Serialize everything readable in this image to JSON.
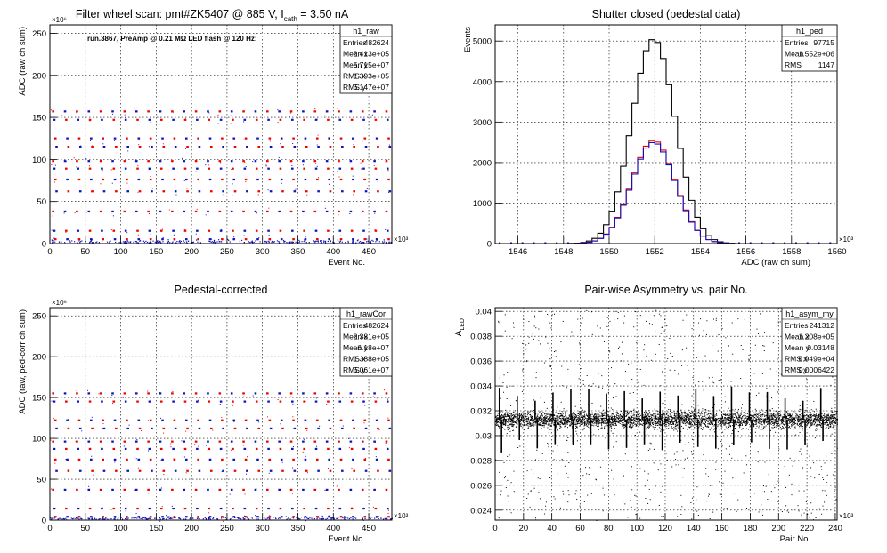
{
  "chart_data": [
    {
      "type": "scatter",
      "title_main": "Filter wheel scan: pmt#ZK5407 @   885 V, I",
      "title_sub": "cath",
      "title_tail": " = 3.50 nA",
      "annotation": "run.3867, PreAmp @ 0.21 MΩ LED flash @  120 Hz:",
      "xlabel": "Event No.",
      "ylabel": "ADC (raw ch sum)",
      "x_exponent": "×10³",
      "y_exponent": "×10⁶",
      "xlim": [
        0,
        482.6
      ],
      "ylim": [
        0,
        260
      ],
      "x_ticks": [
        "0",
        "50",
        "100",
        "150",
        "200",
        "250",
        "300",
        "350",
        "400",
        "450"
      ],
      "y_ticks": [
        "0",
        "50",
        "100",
        "150",
        "200",
        "250"
      ],
      "x_tick_values": [
        0,
        50,
        100,
        150,
        200,
        250,
        300,
        350,
        400,
        450
      ],
      "y_tick_values": [
        0,
        50,
        100,
        150,
        200,
        250
      ],
      "levels": [
        157,
        147,
        125,
        115,
        98,
        89,
        76,
        62,
        38,
        15,
        5
      ],
      "marker_colors": [
        "#ee0000",
        "#1010c0"
      ],
      "stats": {
        "name": "h1_raw",
        "rows": [
          [
            "Entries",
            "482624"
          ],
          [
            "Mean x",
            "2.413e+05"
          ],
          [
            "Mean y",
            "5.715e+07"
          ],
          [
            "RMS x",
            "1.393e+05"
          ],
          [
            "RMS y",
            "5.147e+07"
          ]
        ]
      }
    },
    {
      "type": "line",
      "title_main": "Shutter closed (pedestal data)",
      "xlabel": "ADC (raw ch sum)",
      "ylabel": "Events",
      "x_exponent": "×10³",
      "xlim": [
        1545,
        1560
      ],
      "ylim": [
        0,
        5400
      ],
      "x_ticks": [
        "1546",
        "1548",
        "1550",
        "1552",
        "1554",
        "1556",
        "1558",
        "1560"
      ],
      "y_ticks": [
        "0",
        "1000",
        "2000",
        "3000",
        "4000",
        "5000"
      ],
      "x_tick_values": [
        1546,
        1548,
        1550,
        1552,
        1554,
        1556,
        1558,
        1560
      ],
      "y_tick_values": [
        0,
        1000,
        2000,
        3000,
        4000,
        5000
      ],
      "peak_center": 1551.95,
      "peak_sigma": 0.95,
      "series": [
        {
          "color": "#000000",
          "peak": 5050
        },
        {
          "color": "#ee0000",
          "peak": 2550
        },
        {
          "color": "#1010c0",
          "peak": 2500
        }
      ],
      "stats": {
        "name": "h1_ped",
        "rows": [
          [
            "Entries",
            "97715"
          ],
          [
            "Mean",
            "1.552e+06"
          ],
          [
            "RMS",
            "1147"
          ]
        ]
      }
    },
    {
      "type": "scatter",
      "title_main": "Pedestal-corrected",
      "xlabel": "Event No.",
      "ylabel": "ADC (raw, ped-corr ch sum)",
      "x_exponent": "×10³",
      "y_exponent": "×10⁶",
      "xlim": [
        0,
        482.6
      ],
      "ylim": [
        0,
        260
      ],
      "x_ticks": [
        "0",
        "50",
        "100",
        "150",
        "200",
        "250",
        "300",
        "350",
        "400",
        "450"
      ],
      "y_ticks": [
        "0",
        "50",
        "100",
        "150",
        "200",
        "250"
      ],
      "x_tick_values": [
        0,
        50,
        100,
        150,
        200,
        250,
        300,
        350,
        400,
        450
      ],
      "y_tick_values": [
        0,
        50,
        100,
        150,
        200,
        250
      ],
      "levels": [
        155,
        145,
        122,
        112,
        96,
        87,
        74,
        60,
        37,
        14,
        4
      ],
      "marker_colors": [
        "#ee0000",
        "#1010c0"
      ],
      "stats": {
        "name": "h1_rawCor",
        "rows": [
          [
            "Entries",
            "482624"
          ],
          [
            "Mean x",
            "2.381e+05"
          ],
          [
            "Mean y",
            "6.18e+07"
          ],
          [
            "RMS x",
            "1.388e+05"
          ],
          [
            "RMS y",
            "5.061e+07"
          ]
        ]
      }
    },
    {
      "type": "scatter",
      "title_main": "Pair-wise Asymmetry vs. pair No.",
      "xlabel": "Pair No.",
      "ylabel": "A",
      "ylabel_sub": "LED",
      "x_exponent": "×10³",
      "xlim": [
        0,
        241.3
      ],
      "ylim": [
        0.0232,
        0.0403
      ],
      "x_ticks": [
        "0",
        "20",
        "40",
        "60",
        "80",
        "100",
        "120",
        "140",
        "160",
        "180",
        "200",
        "220",
        "240"
      ],
      "y_ticks": [
        "0.024",
        "0.026",
        "0.028",
        "0.03",
        "0.032",
        "0.034",
        "0.036",
        "0.038",
        "0.04"
      ],
      "x_tick_values": [
        0,
        20,
        40,
        60,
        80,
        100,
        120,
        140,
        160,
        180,
        200,
        220,
        240
      ],
      "y_tick_values": [
        0.024,
        0.026,
        0.028,
        0.03,
        0.032,
        0.034,
        0.036,
        0.038,
        0.04
      ],
      "band_center": 0.0313,
      "band_halfwidth": 0.0006,
      "stats": {
        "name": "h1_asym_my",
        "rows": [
          [
            "Entries",
            "241312"
          ],
          [
            "Mean x",
            "1.208e+05"
          ],
          [
            "Mean y",
            "0.03148"
          ],
          [
            "RMS x",
            "6.949e+04"
          ],
          [
            "RMS y",
            "0.0006422"
          ]
        ]
      }
    }
  ]
}
